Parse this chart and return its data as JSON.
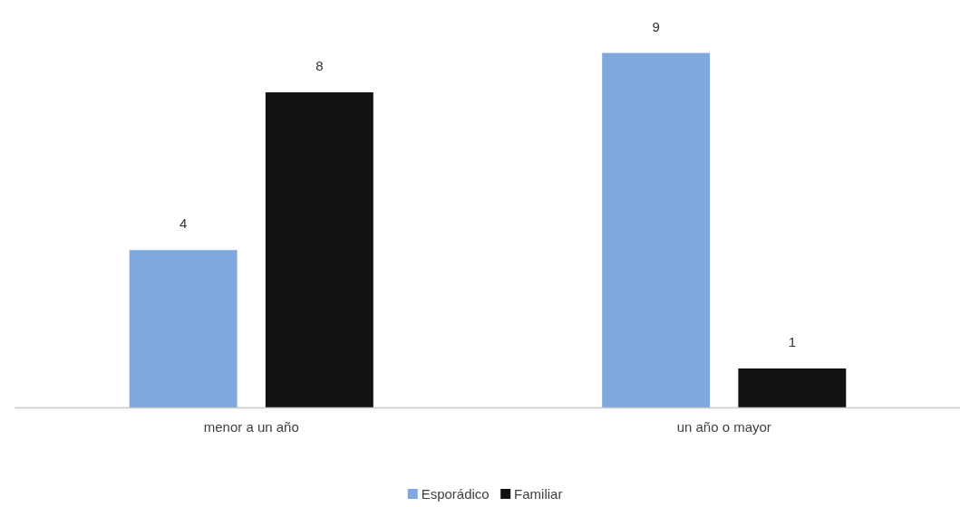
{
  "chart_data": {
    "type": "bar",
    "categories": [
      "menor a un año",
      "un año o mayor"
    ],
    "series": [
      {
        "name": "Esporádico",
        "color": "#80a8dc",
        "values": [
          4,
          9
        ]
      },
      {
        "name": "Familiar",
        "color": "#111111",
        "values": [
          8,
          1
        ]
      }
    ],
    "data_labels": true,
    "legend": "bottom"
  }
}
